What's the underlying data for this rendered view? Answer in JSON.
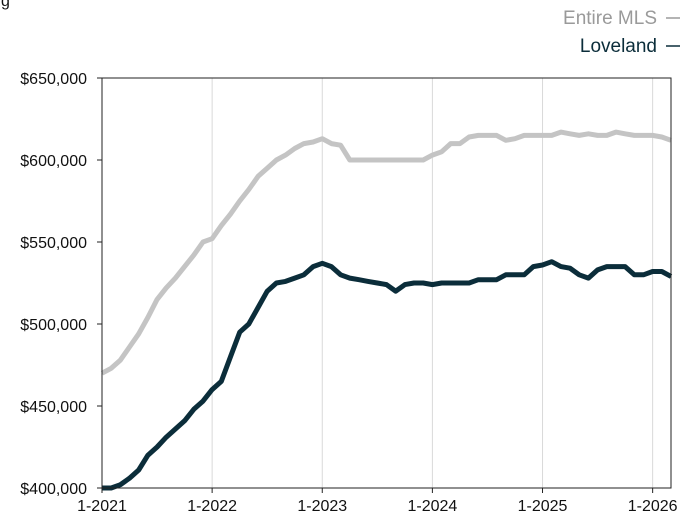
{
  "top_text": "g",
  "chart_data": {
    "type": "line",
    "title": "",
    "xlabel": "",
    "ylabel": "",
    "ylim": [
      400000,
      650000
    ],
    "xlim": [
      "2021-01",
      "2026-03"
    ],
    "y_ticks": [
      400000,
      450000,
      500000,
      550000,
      600000,
      650000
    ],
    "y_tick_labels": [
      "$400,000",
      "$450,000",
      "$500,000",
      "$550,000",
      "$600,000",
      "$650,000"
    ],
    "x_tick_labels": [
      "1-2021",
      "1-2022",
      "1-2023",
      "1-2024",
      "1-2025",
      "1-2026"
    ],
    "grid": "vertical lines at each year",
    "legend_position": "top-right",
    "x": [
      "2021-01",
      "2021-02",
      "2021-03",
      "2021-04",
      "2021-05",
      "2021-06",
      "2021-07",
      "2021-08",
      "2021-09",
      "2021-10",
      "2021-11",
      "2021-12",
      "2022-01",
      "2022-02",
      "2022-03",
      "2022-04",
      "2022-05",
      "2022-06",
      "2022-07",
      "2022-08",
      "2022-09",
      "2022-10",
      "2022-11",
      "2022-12",
      "2023-01",
      "2023-02",
      "2023-03",
      "2023-04",
      "2023-05",
      "2023-06",
      "2023-07",
      "2023-08",
      "2023-09",
      "2023-10",
      "2023-11",
      "2023-12",
      "2024-01",
      "2024-02",
      "2024-03",
      "2024-04",
      "2024-05",
      "2024-06",
      "2024-07",
      "2024-08",
      "2024-09",
      "2024-10",
      "2024-11",
      "2024-12",
      "2025-01",
      "2025-02",
      "2025-03",
      "2025-04",
      "2025-05",
      "2025-06",
      "2025-07",
      "2025-08",
      "2025-09",
      "2025-10",
      "2025-11",
      "2025-12",
      "2026-01",
      "2026-02",
      "2026-03"
    ],
    "series": [
      {
        "name": "Entire MLS",
        "color": "#c4c4c4",
        "values": [
          470000,
          473000,
          478000,
          486000,
          494000,
          504000,
          515000,
          522000,
          528000,
          535000,
          542000,
          550000,
          552000,
          560000,
          567000,
          575000,
          582000,
          590000,
          595000,
          600000,
          603000,
          607000,
          610000,
          611000,
          613000,
          610000,
          609000,
          600000,
          600000,
          600000,
          600000,
          600000,
          600000,
          600000,
          600000,
          600000,
          603000,
          605000,
          610000,
          610000,
          614000,
          615000,
          615000,
          615000,
          612000,
          613000,
          615000,
          615000,
          615000,
          615000,
          617000,
          616000,
          615000,
          616000,
          615000,
          615000,
          617000,
          616000,
          615000,
          615000,
          615000,
          614000,
          612000
        ]
      },
      {
        "name": "Loveland",
        "color": "#0b2d3a",
        "values": [
          400000,
          400000,
          402000,
          406000,
          411000,
          420000,
          425000,
          431000,
          436000,
          441000,
          448000,
          453000,
          460000,
          465000,
          480000,
          495000,
          500000,
          510000,
          520000,
          525000,
          526000,
          528000,
          530000,
          535000,
          537000,
          535000,
          530000,
          528000,
          527000,
          526000,
          525000,
          524000,
          520000,
          524000,
          525000,
          525000,
          524000,
          525000,
          525000,
          525000,
          525000,
          527000,
          527000,
          527000,
          530000,
          530000,
          530000,
          535000,
          536000,
          538000,
          535000,
          534000,
          530000,
          528000,
          533000,
          535000,
          535000,
          535000,
          530000,
          530000,
          532000,
          532000,
          529000
        ]
      }
    ]
  }
}
